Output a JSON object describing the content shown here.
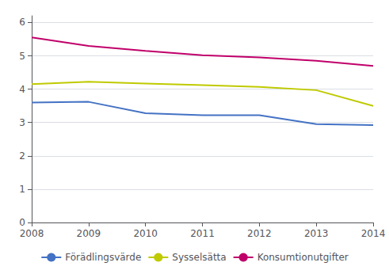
{
  "chart_data": {
    "type": "line",
    "categories": [
      "2008",
      "2009",
      "2010",
      "2011",
      "2012",
      "2013",
      "2014"
    ],
    "series": [
      {
        "name": "Förädlingsvärde",
        "color": "#4472C4",
        "values": [
          3.6,
          3.62,
          3.28,
          3.22,
          3.22,
          2.95,
          2.92
        ]
      },
      {
        "name": "Sysselsätta",
        "color": "#BFCA00",
        "values": [
          4.15,
          4.22,
          4.17,
          4.12,
          4.07,
          3.97,
          3.5
        ]
      },
      {
        "name": "Konsumtionutgifter",
        "color": "#C0006A",
        "values": [
          5.55,
          5.3,
          5.15,
          5.02,
          4.95,
          4.85,
          4.7
        ]
      }
    ],
    "ylim": [
      0,
      6.2
    ],
    "yticks": [
      0,
      1,
      2,
      3,
      4,
      5,
      6
    ],
    "grid": true,
    "legend": "bottom"
  }
}
